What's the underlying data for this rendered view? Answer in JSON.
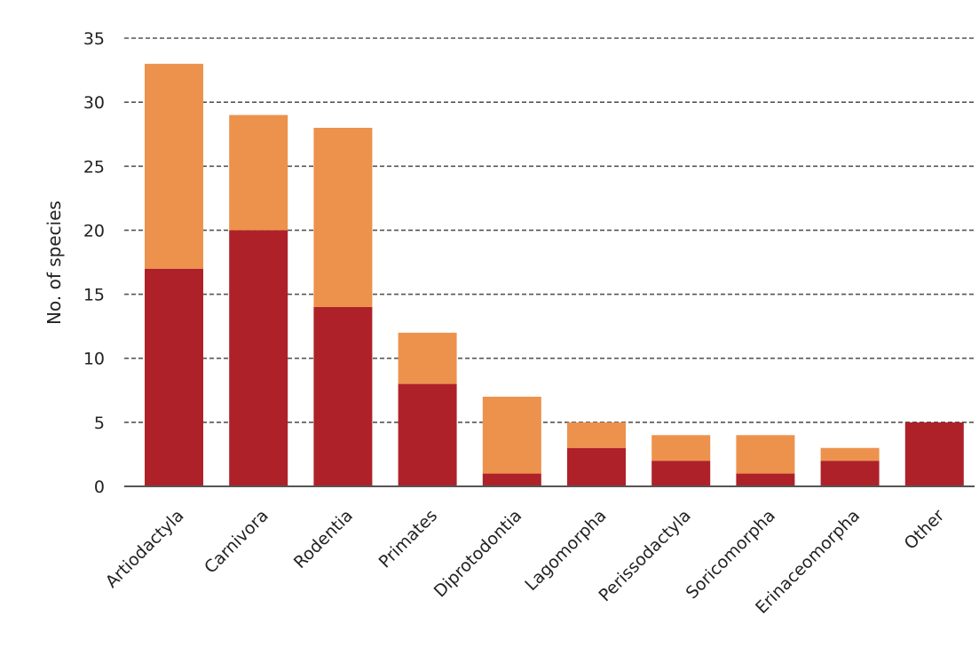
{
  "chart_data": {
    "type": "bar",
    "stacked": true,
    "categories": [
      "Artiodactyla",
      "Carnivora",
      "Rodentia",
      "Primates",
      "Diprotodontia",
      "Lagomorpha",
      "Perissodactyla",
      "Soricomorpha",
      "Erinaceomorpha",
      "Other"
    ],
    "series": [
      {
        "values": [
          17,
          20,
          14,
          8,
          1,
          3,
          2,
          1,
          2,
          5
        ],
        "color": "#ae2129"
      },
      {
        "values": [
          16,
          9,
          14,
          4,
          6,
          2,
          2,
          3,
          1,
          0
        ],
        "color": "#ec924d"
      }
    ],
    "title": "",
    "xlabel": "",
    "ylabel": "No. of species",
    "ylim": [
      0,
      35
    ],
    "yticks": [
      0,
      5,
      10,
      15,
      20,
      25,
      30,
      35
    ],
    "grid": true,
    "legend": "none"
  }
}
